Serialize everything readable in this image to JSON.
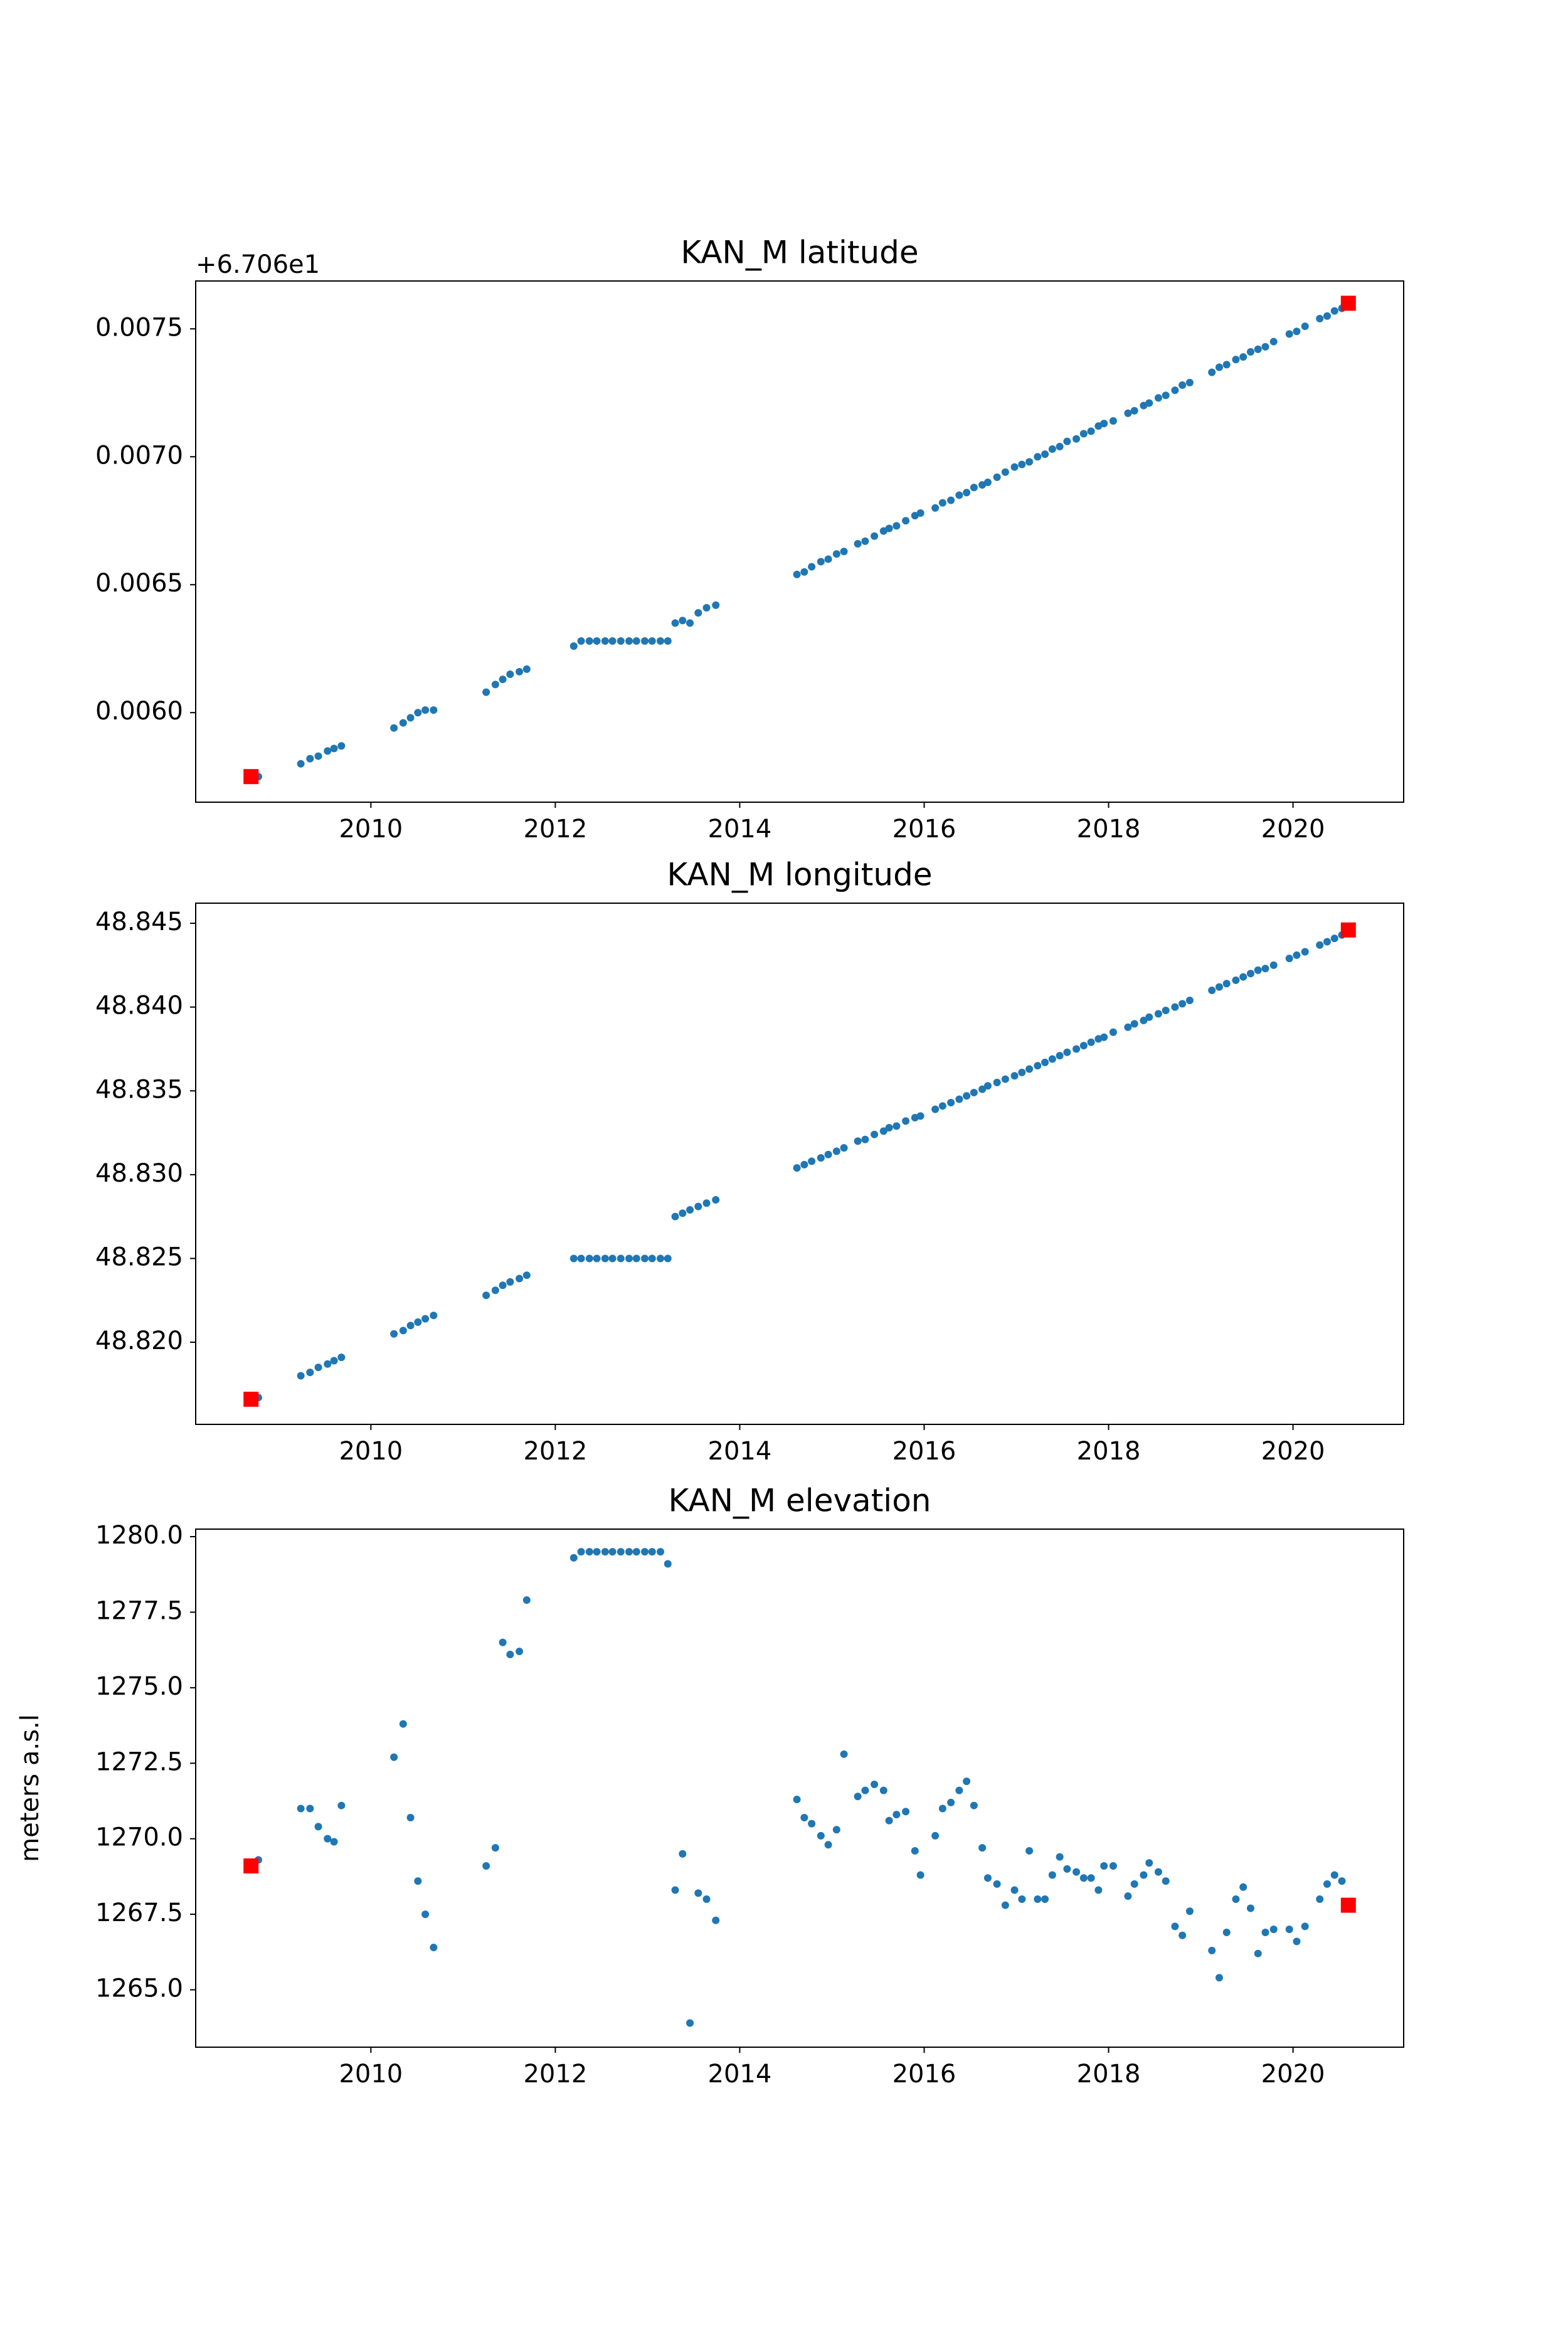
{
  "chart_data": [
    {
      "type": "scatter",
      "title": "KAN_M latitude",
      "offset_text": "+6.706e1",
      "xlim": [
        2008.1,
        2021.2
      ],
      "xticks": [
        2010,
        2012,
        2014,
        2016,
        2018,
        2020
      ],
      "ylim": [
        0.00565,
        0.007687
      ],
      "yticks": [
        {
          "value": 0.006,
          "label": "0.0060"
        },
        0.0065,
        {
          "value": 0.007,
          "label": "0.0070"
        },
        0.0075
      ],
      "series": [
        {
          "color": "#1f77b4",
          "marker": "circle",
          "x": [
            2008.78,
            2009.24,
            2009.34,
            2009.43,
            2009.53,
            2009.6,
            2009.68,
            2010.25,
            2010.35,
            2010.43,
            2010.51,
            2010.59,
            2010.68,
            2011.25,
            2011.35,
            2011.43,
            2011.51,
            2011.61,
            2011.69,
            2012.2,
            2012.28,
            2012.37,
            2012.45,
            2012.54,
            2012.62,
            2012.71,
            2012.8,
            2012.88,
            2012.97,
            2013.05,
            2013.14,
            2013.22,
            2013.3,
            2013.38,
            2013.46,
            2013.55,
            2013.64,
            2013.74,
            2014.62,
            2014.7,
            2014.78,
            2014.88,
            2014.96,
            2015.05,
            2015.13,
            2015.28,
            2015.36,
            2015.46,
            2015.56,
            2015.62,
            2015.7,
            2015.8,
            2015.9,
            2015.96,
            2016.12,
            2016.2,
            2016.29,
            2016.38,
            2016.46,
            2016.54,
            2016.63,
            2016.69,
            2016.79,
            2016.88,
            2016.98,
            2017.06,
            2017.14,
            2017.23,
            2017.31,
            2017.39,
            2017.47,
            2017.55,
            2017.65,
            2017.73,
            2017.81,
            2017.89,
            2017.95,
            2018.05,
            2018.21,
            2018.28,
            2018.38,
            2018.44,
            2018.54,
            2018.62,
            2018.72,
            2018.8,
            2018.88,
            2019.12,
            2019.2,
            2019.28,
            2019.38,
            2019.46,
            2019.54,
            2019.62,
            2019.7,
            2019.79,
            2019.96,
            2020.04,
            2020.13,
            2020.29,
            2020.37,
            2020.45,
            2020.53
          ],
          "values": [
            0.00575,
            0.0058,
            0.00582,
            0.00583,
            0.00585,
            0.00586,
            0.00587,
            0.00594,
            0.00596,
            0.00598,
            0.006,
            0.00601,
            0.00601,
            0.00608,
            0.00611,
            0.00613,
            0.00615,
            0.00616,
            0.00617,
            0.00626,
            0.00628,
            0.00628,
            0.00628,
            0.00628,
            0.00628,
            0.00628,
            0.00628,
            0.00628,
            0.00628,
            0.00628,
            0.00628,
            0.00628,
            0.00635,
            0.00636,
            0.00635,
            0.00639,
            0.00641,
            0.00642,
            0.00654,
            0.00655,
            0.00657,
            0.00659,
            0.0066,
            0.00662,
            0.00663,
            0.00666,
            0.00667,
            0.00669,
            0.00671,
            0.00672,
            0.00673,
            0.00675,
            0.00677,
            0.00678,
            0.0068,
            0.00682,
            0.00683,
            0.00685,
            0.00686,
            0.00688,
            0.00689,
            0.0069,
            0.00692,
            0.00694,
            0.00696,
            0.00697,
            0.00698,
            0.007,
            0.00701,
            0.00703,
            0.00704,
            0.00706,
            0.00707,
            0.00709,
            0.0071,
            0.00712,
            0.00713,
            0.00714,
            0.00717,
            0.00718,
            0.0072,
            0.00721,
            0.00723,
            0.00724,
            0.00726,
            0.00728,
            0.00729,
            0.00733,
            0.00735,
            0.00736,
            0.00738,
            0.00739,
            0.00741,
            0.00742,
            0.00743,
            0.00745,
            0.00748,
            0.00749,
            0.00751,
            0.00754,
            0.00755,
            0.00757,
            0.00758
          ]
        },
        {
          "color": "#ff0000",
          "marker": "square",
          "x": [
            2008.7,
            2020.6
          ],
          "values": [
            0.00575,
            0.0076
          ]
        }
      ]
    },
    {
      "type": "scatter",
      "title": "KAN_M longitude",
      "xlim": [
        2008.1,
        2021.2
      ],
      "xticks": [
        2010,
        2012,
        2014,
        2016,
        2018,
        2020
      ],
      "ylim": [
        48.8151,
        48.8462
      ],
      "yticks": [
        {
          "value": 48.82,
          "label": "48.820"
        },
        48.825,
        {
          "value": 48.83,
          "label": "48.830"
        },
        48.835,
        {
          "value": 48.84,
          "label": "48.840"
        },
        48.845
      ],
      "series": [
        {
          "color": "#1f77b4",
          "marker": "circle",
          "x": [
            2008.78,
            2009.24,
            2009.34,
            2009.43,
            2009.53,
            2009.6,
            2009.68,
            2010.25,
            2010.35,
            2010.43,
            2010.51,
            2010.59,
            2010.68,
            2011.25,
            2011.35,
            2011.43,
            2011.51,
            2011.61,
            2011.69,
            2012.2,
            2012.28,
            2012.37,
            2012.45,
            2012.54,
            2012.62,
            2012.71,
            2012.8,
            2012.88,
            2012.97,
            2013.05,
            2013.14,
            2013.22,
            2013.3,
            2013.38,
            2013.46,
            2013.55,
            2013.64,
            2013.74,
            2014.62,
            2014.7,
            2014.78,
            2014.88,
            2014.96,
            2015.05,
            2015.13,
            2015.28,
            2015.36,
            2015.46,
            2015.56,
            2015.62,
            2015.7,
            2015.8,
            2015.9,
            2015.96,
            2016.12,
            2016.2,
            2016.29,
            2016.38,
            2016.46,
            2016.54,
            2016.63,
            2016.69,
            2016.79,
            2016.88,
            2016.98,
            2017.06,
            2017.14,
            2017.23,
            2017.31,
            2017.39,
            2017.47,
            2017.55,
            2017.65,
            2017.73,
            2017.81,
            2017.89,
            2017.95,
            2018.05,
            2018.21,
            2018.28,
            2018.38,
            2018.44,
            2018.54,
            2018.62,
            2018.72,
            2018.8,
            2018.88,
            2019.12,
            2019.2,
            2019.28,
            2019.38,
            2019.46,
            2019.54,
            2019.62,
            2019.7,
            2019.79,
            2019.96,
            2020.04,
            2020.13,
            2020.29,
            2020.37,
            2020.45,
            2020.53
          ],
          "values": [
            48.8167,
            48.818,
            48.8182,
            48.8185,
            48.8187,
            48.8189,
            48.8191,
            48.8205,
            48.8207,
            48.821,
            48.8212,
            48.8214,
            48.8216,
            48.8228,
            48.8231,
            48.8234,
            48.8236,
            48.8238,
            48.824,
            48.825,
            48.825,
            48.825,
            48.825,
            48.825,
            48.825,
            48.825,
            48.825,
            48.825,
            48.825,
            48.825,
            48.825,
            48.825,
            48.8275,
            48.8277,
            48.8279,
            48.8281,
            48.8283,
            48.8285,
            48.8304,
            48.8306,
            48.8308,
            48.831,
            48.8312,
            48.8314,
            48.8316,
            48.832,
            48.8321,
            48.8324,
            48.8326,
            48.8328,
            48.8329,
            48.8332,
            48.8334,
            48.8335,
            48.8339,
            48.8341,
            48.8343,
            48.8345,
            48.8347,
            48.8349,
            48.8351,
            48.8353,
            48.8355,
            48.8357,
            48.8359,
            48.8361,
            48.8363,
            48.8365,
            48.8367,
            48.8369,
            48.8371,
            48.8373,
            48.8375,
            48.8377,
            48.8379,
            48.8381,
            48.8382,
            48.8385,
            48.8388,
            48.839,
            48.8392,
            48.8394,
            48.8396,
            48.8398,
            48.84,
            48.8402,
            48.8404,
            48.841,
            48.8412,
            48.8414,
            48.8416,
            48.8418,
            48.842,
            48.8422,
            48.8423,
            48.8425,
            48.8429,
            48.8431,
            48.8433,
            48.8437,
            48.8439,
            48.8441,
            48.8443
          ]
        },
        {
          "color": "#ff0000",
          "marker": "square",
          "x": [
            2008.7,
            2020.6
          ],
          "values": [
            48.8166,
            48.8446
          ]
        }
      ]
    },
    {
      "type": "scatter",
      "title": "KAN_M elevation",
      "y_label": "meters a.s.l",
      "xlim": [
        2008.1,
        2021.2
      ],
      "xticks": [
        2010,
        2012,
        2014,
        2016,
        2018,
        2020
      ],
      "ylim": [
        1263.1,
        1280.25
      ],
      "yticks": [
        {
          "value": 1265,
          "label": "1265.0"
        },
        1267.5,
        {
          "value": 1270,
          "label": "1270.0"
        },
        1272.5,
        {
          "value": 1275,
          "label": "1275.0"
        },
        1277.5,
        {
          "value": 1280,
          "label": "1280.0"
        }
      ],
      "series": [
        {
          "color": "#1f77b4",
          "marker": "circle",
          "x": [
            2008.78,
            2009.24,
            2009.34,
            2009.43,
            2009.53,
            2009.6,
            2009.68,
            2010.25,
            2010.35,
            2010.43,
            2010.51,
            2010.59,
            2010.68,
            2011.25,
            2011.35,
            2011.43,
            2011.51,
            2011.61,
            2011.69,
            2012.2,
            2012.28,
            2012.37,
            2012.45,
            2012.54,
            2012.62,
            2012.71,
            2012.8,
            2012.88,
            2012.97,
            2013.05,
            2013.14,
            2013.22,
            2013.3,
            2013.38,
            2013.46,
            2013.55,
            2013.64,
            2013.74,
            2014.62,
            2014.7,
            2014.78,
            2014.88,
            2014.96,
            2015.05,
            2015.13,
            2015.28,
            2015.36,
            2015.46,
            2015.56,
            2015.62,
            2015.7,
            2015.8,
            2015.9,
            2015.96,
            2016.12,
            2016.2,
            2016.29,
            2016.38,
            2016.46,
            2016.54,
            2016.63,
            2016.69,
            2016.79,
            2016.88,
            2016.98,
            2017.06,
            2017.14,
            2017.23,
            2017.31,
            2017.39,
            2017.47,
            2017.55,
            2017.65,
            2017.73,
            2017.81,
            2017.89,
            2017.95,
            2018.05,
            2018.21,
            2018.28,
            2018.38,
            2018.44,
            2018.54,
            2018.62,
            2018.72,
            2018.8,
            2018.88,
            2019.12,
            2019.2,
            2019.28,
            2019.38,
            2019.46,
            2019.54,
            2019.62,
            2019.7,
            2019.79,
            2019.96,
            2020.04,
            2020.13,
            2020.29,
            2020.37,
            2020.45,
            2020.53
          ],
          "values": [
            1269.3,
            1271.0,
            1271.0,
            1270.4,
            1270.0,
            1269.9,
            1271.1,
            1272.7,
            1273.8,
            1270.7,
            1268.6,
            1267.5,
            1266.4,
            1269.1,
            1269.7,
            1276.5,
            1276.1,
            1276.2,
            1277.9,
            1279.3,
            1279.5,
            1279.5,
            1279.5,
            1279.5,
            1279.5,
            1279.5,
            1279.5,
            1279.5,
            1279.5,
            1279.5,
            1279.5,
            1279.1,
            1268.3,
            1269.5,
            1263.9,
            1268.2,
            1268.0,
            1267.3,
            1271.3,
            1270.7,
            1270.5,
            1270.1,
            1269.8,
            1270.3,
            1272.8,
            1271.4,
            1271.6,
            1271.8,
            1271.6,
            1270.6,
            1270.8,
            1270.9,
            1269.6,
            1268.8,
            1270.1,
            1271.0,
            1271.2,
            1271.6,
            1271.9,
            1271.1,
            1269.7,
            1268.7,
            1268.5,
            1267.8,
            1268.3,
            1268.0,
            1269.6,
            1268.0,
            1268.0,
            1268.8,
            1269.4,
            1269.0,
            1268.9,
            1268.7,
            1268.7,
            1268.3,
            1269.1,
            1269.1,
            1268.1,
            1268.5,
            1268.8,
            1269.2,
            1268.9,
            1268.6,
            1267.1,
            1266.8,
            1267.6,
            1266.3,
            1265.4,
            1266.9,
            1268.0,
            1268.4,
            1267.7,
            1266.2,
            1266.9,
            1267.0,
            1267.0,
            1266.6,
            1267.1,
            1268.0,
            1268.5,
            1268.8,
            1268.6
          ]
        },
        {
          "color": "#ff0000",
          "marker": "square",
          "x": [
            2008.7,
            2020.6
          ],
          "values": [
            1269.1,
            1267.8
          ]
        }
      ]
    }
  ]
}
